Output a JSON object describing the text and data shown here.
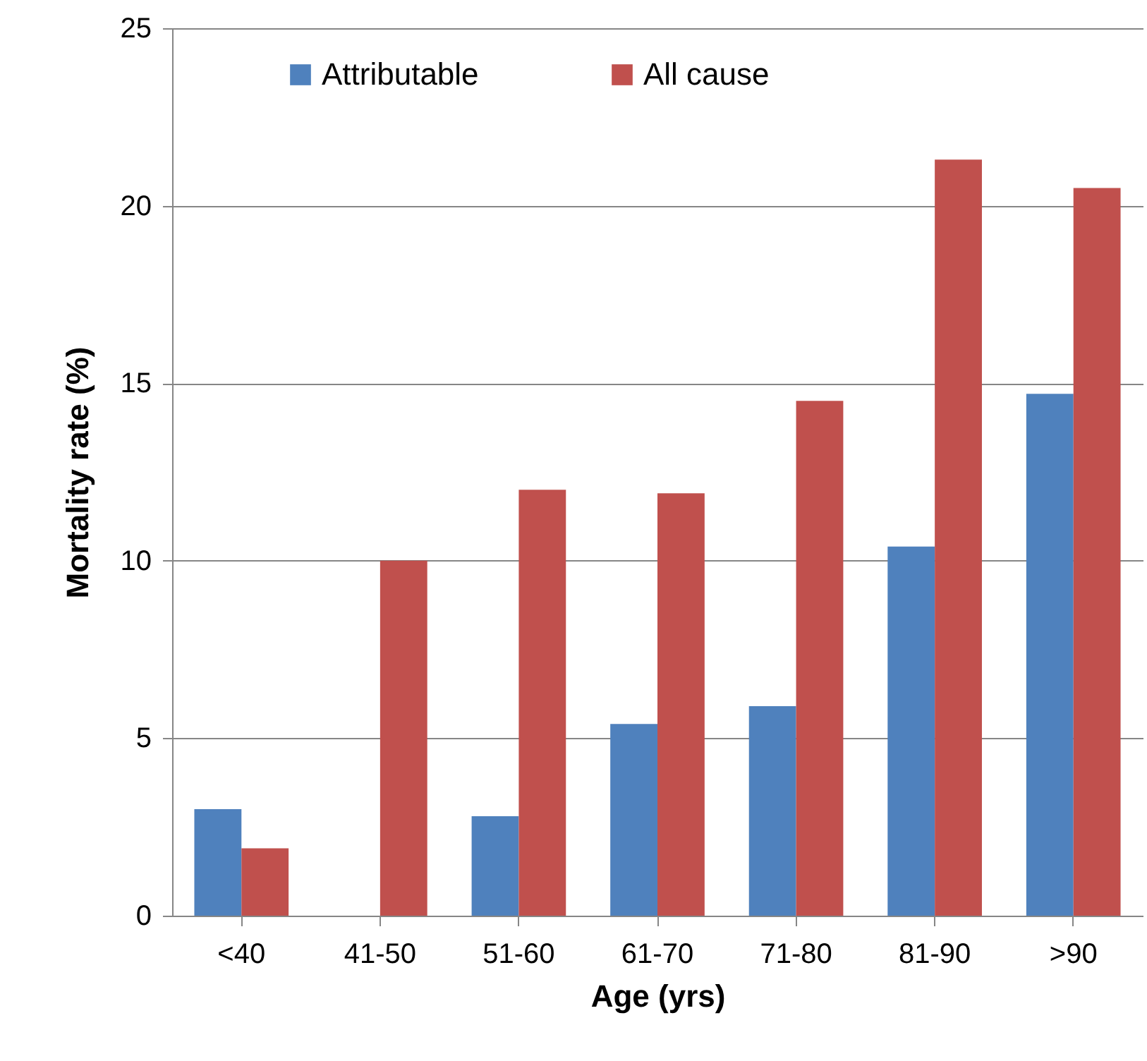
{
  "chart_data": {
    "type": "bar",
    "xlabel": "Age (yrs)",
    "ylabel": "Mortality rate (%)",
    "categories": [
      "<40",
      "41-50",
      "51-60",
      "61-70",
      "71-80",
      "81-90",
      ">90"
    ],
    "series": [
      {
        "name": "Attributable",
        "color": "#4f81bd",
        "values": [
          3.0,
          0,
          2.8,
          5.4,
          5.9,
          10.4,
          14.7
        ]
      },
      {
        "name": "All cause",
        "color": "#c0504d",
        "values": [
          1.9,
          10.0,
          12.0,
          11.9,
          14.5,
          21.3,
          20.5
        ]
      }
    ],
    "ylim": [
      0,
      25
    ],
    "yticks": [
      0,
      5,
      10,
      15,
      20,
      25
    ],
    "grid": "y",
    "legend": "top"
  }
}
